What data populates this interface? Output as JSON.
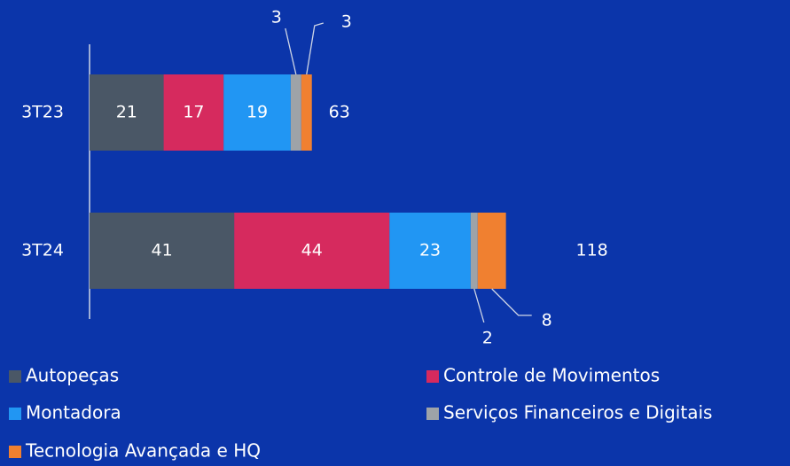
{
  "chart_data": {
    "type": "stacked-bar-horizontal",
    "categories": [
      "3T23",
      "3T24"
    ],
    "series": [
      {
        "name": "Autopeças",
        "color": "#4a5766",
        "values": [
          21,
          41
        ]
      },
      {
        "name": "Controle de Movimentos",
        "color": "#d62a5e",
        "values": [
          17,
          44
        ]
      },
      {
        "name": "Montadora",
        "color": "#2196f3",
        "values": [
          19,
          23
        ]
      },
      {
        "name": "Serviços Financeiros e Digitais",
        "color": "#9ea3a8",
        "values": [
          3,
          2
        ]
      },
      {
        "name": "Tecnologia Avançada e HQ",
        "color": "#f08030",
        "values": [
          3,
          8
        ]
      }
    ],
    "totals": [
      63,
      118
    ]
  }
}
